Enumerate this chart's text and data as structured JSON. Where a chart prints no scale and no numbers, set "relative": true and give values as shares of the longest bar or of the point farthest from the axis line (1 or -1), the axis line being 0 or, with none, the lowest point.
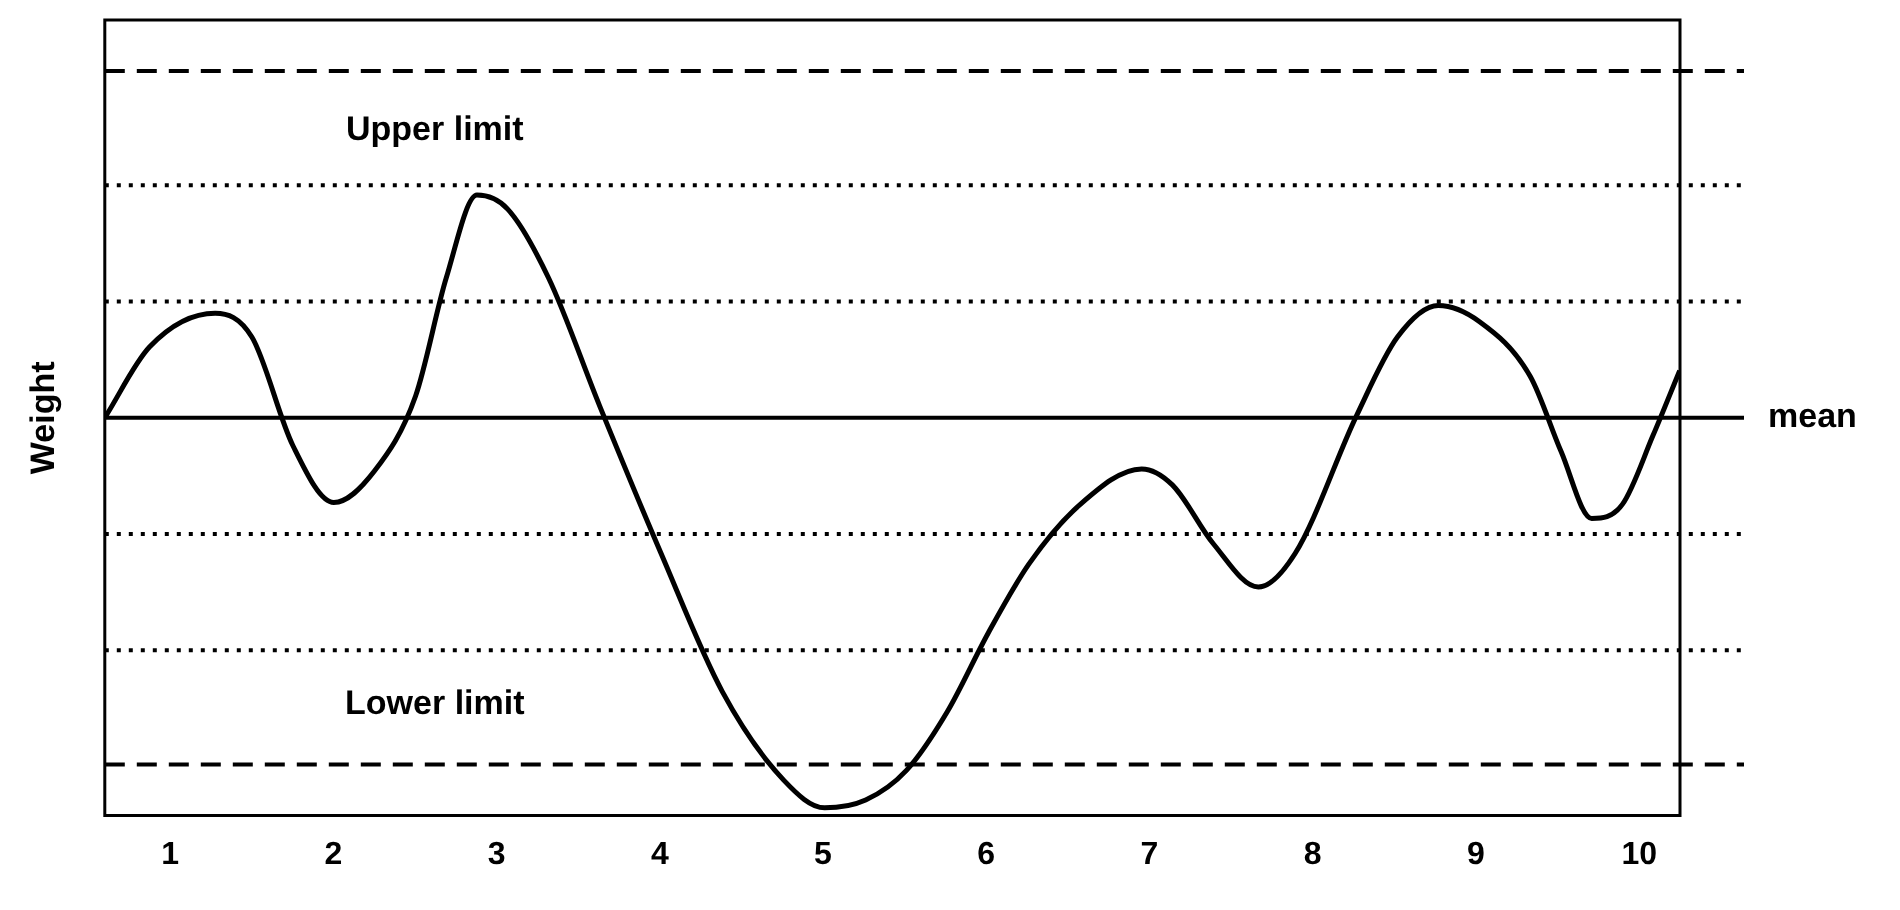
{
  "chart_data": {
    "type": "line",
    "relative": true,
    "ylabel": "Weight",
    "xlim": [
      0.6,
      10.25
    ],
    "xticks": [
      1,
      2,
      3,
      4,
      5,
      6,
      7,
      8,
      9,
      10
    ],
    "grid": false,
    "legend": false,
    "marker": "none",
    "line_style": "solid",
    "x": [
      0.6,
      0.875,
      1.276,
      1.501,
      1.752,
      2.003,
      2.253,
      2.504,
      2.692,
      2.88,
      3.068,
      3.318,
      3.632,
      4.008,
      4.383,
      4.759,
      5.01,
      5.261,
      5.511,
      5.762,
      6.013,
      6.263,
      6.576,
      6.952,
      7.14,
      7.391,
      7.667,
      7.892,
      8.268,
      8.519,
      8.769,
      9.02,
      9.333,
      9.521,
      9.709,
      9.897,
      10.085,
      10.248
    ],
    "series": [
      {
        "color": "#000000",
        "values": [
          0,
          0.182,
          0.268,
          0.207,
          -0.071,
          -0.217,
          -0.136,
          0.056,
          0.359,
          0.571,
          0.535,
          0.359,
          0.03,
          -0.348,
          -0.702,
          -0.929,
          -1,
          -0.98,
          -0.904,
          -0.753,
          -0.551,
          -0.374,
          -0.222,
          -0.131,
          -0.172,
          -0.323,
          -0.434,
          -0.348,
          0.005,
          0.207,
          0.288,
          0.247,
          0.106,
          -0.086,
          -0.258,
          -0.222,
          -0.045,
          0.121
        ]
      }
    ],
    "ref_lines": [
      {
        "axis": "y",
        "value": 0,
        "label": "mean",
        "color": "#000000",
        "line_style": "solid"
      },
      {
        "axis": "y",
        "value": 0.889,
        "label": "Upper limit",
        "color": "#000000",
        "line_style": "dashed"
      },
      {
        "axis": "y",
        "value": -0.889,
        "label": "Lower limit",
        "color": "#000000",
        "line_style": "dashed"
      },
      {
        "axis": "y",
        "value": 0.596,
        "color": "#000000",
        "line_style": "dotted"
      },
      {
        "axis": "y",
        "value": 0.298,
        "color": "#000000",
        "line_style": "dotted"
      },
      {
        "axis": "y",
        "value": -0.298,
        "color": "#000000",
        "line_style": "dotted"
      },
      {
        "axis": "y",
        "value": -0.596,
        "color": "#000000",
        "line_style": "dotted"
      }
    ]
  }
}
